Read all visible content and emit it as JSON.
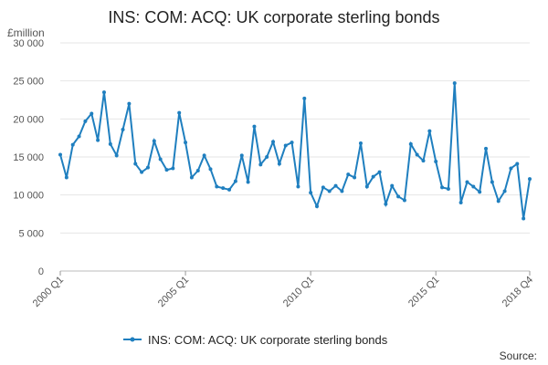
{
  "chart_data": {
    "type": "line",
    "title": "INS: COM: ACQ: UK corporate sterling bonds",
    "y_unit": "£million",
    "ylim": [
      0,
      30000
    ],
    "y_ticks": [
      0,
      5000,
      10000,
      15000,
      20000,
      25000,
      30000
    ],
    "y_tick_labels": [
      "0",
      "5 000",
      "10 000",
      "15 000",
      "20 000",
      "25 000",
      "30 000"
    ],
    "x_tick_labels": [
      "2000 Q1",
      "2005 Q1",
      "2010 Q1",
      "2015 Q1",
      "2018 Q4"
    ],
    "x_tick_index": [
      0,
      20,
      40,
      60,
      75
    ],
    "grid": true,
    "legend_position": "bottom",
    "series": [
      {
        "name": "INS: COM: ACQ: UK corporate sterling bonds",
        "color": "#1f7fbf",
        "categories": [
          "2000 Q1",
          "2000 Q2",
          "2000 Q3",
          "2000 Q4",
          "2001 Q1",
          "2001 Q2",
          "2001 Q3",
          "2001 Q4",
          "2002 Q1",
          "2002 Q2",
          "2002 Q3",
          "2002 Q4",
          "2003 Q1",
          "2003 Q2",
          "2003 Q3",
          "2003 Q4",
          "2004 Q1",
          "2004 Q2",
          "2004 Q3",
          "2004 Q4",
          "2005 Q1",
          "2005 Q2",
          "2005 Q3",
          "2005 Q4",
          "2006 Q1",
          "2006 Q2",
          "2006 Q3",
          "2006 Q4",
          "2007 Q1",
          "2007 Q2",
          "2007 Q3",
          "2007 Q4",
          "2008 Q1",
          "2008 Q2",
          "2008 Q3",
          "2008 Q4",
          "2009 Q1",
          "2009 Q2",
          "2009 Q3",
          "2009 Q4",
          "2010 Q1",
          "2010 Q2",
          "2010 Q3",
          "2010 Q4",
          "2011 Q1",
          "2011 Q2",
          "2011 Q3",
          "2011 Q4",
          "2012 Q1",
          "2012 Q2",
          "2012 Q3",
          "2012 Q4",
          "2013 Q1",
          "2013 Q2",
          "2013 Q3",
          "2013 Q4",
          "2014 Q1",
          "2014 Q2",
          "2014 Q3",
          "2014 Q4",
          "2015 Q1",
          "2015 Q2",
          "2015 Q3",
          "2015 Q4",
          "2016 Q1",
          "2016 Q2",
          "2016 Q3",
          "2016 Q4",
          "2017 Q1",
          "2017 Q2",
          "2017 Q3",
          "2017 Q4",
          "2018 Q1",
          "2018 Q2",
          "2018 Q3",
          "2018 Q4"
        ],
        "values": [
          15300,
          12300,
          16600,
          17700,
          19700,
          20700,
          17200,
          23500,
          16700,
          15200,
          18600,
          22000,
          14100,
          13000,
          13600,
          17100,
          14700,
          13300,
          13500,
          20800,
          16900,
          12300,
          13200,
          15200,
          13400,
          11100,
          10900,
          10700,
          11800,
          15200,
          11700,
          19000,
          14000,
          15000,
          17000,
          14100,
          16500,
          16900,
          11100,
          22700,
          10300,
          8500,
          11000,
          10500,
          11200,
          10500,
          12700,
          12300,
          16800,
          11100,
          12400,
          13000,
          8800,
          11200,
          9800,
          9300,
          16700,
          15300,
          14500,
          18400,
          14400,
          11000,
          10800,
          24700,
          9000,
          11700,
          11100,
          10400,
          16100,
          11700,
          9200,
          10500,
          13500,
          14100,
          6900,
          12100
        ]
      }
    ],
    "legend_label": "INS: COM: ACQ: UK corporate sterling bonds",
    "source_label": "Source:"
  }
}
